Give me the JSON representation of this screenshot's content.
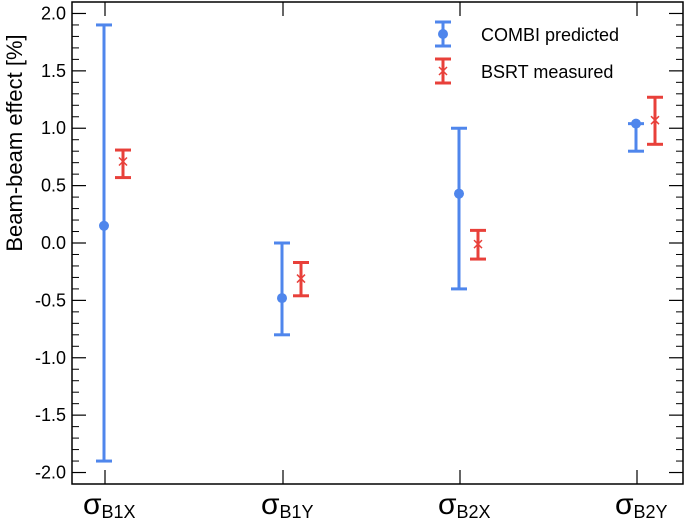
{
  "chart_data": {
    "type": "errorbar",
    "title": "",
    "xlabel": "",
    "ylabel": "Beam-beam effect [%]",
    "ylim": [
      -2.1,
      2.1
    ],
    "yticks": [
      "-2.0",
      "-1.5",
      "-1.0",
      "-0.5",
      "0.0",
      "0.5",
      "1.0",
      "1.5",
      "2.0"
    ],
    "ytick_values": [
      -2.0,
      -1.5,
      -1.0,
      -0.5,
      0.0,
      0.5,
      1.0,
      1.5,
      2.0
    ],
    "categories": [
      {
        "main": "σ",
        "sub": "B1X"
      },
      {
        "main": "σ",
        "sub": "B1Y"
      },
      {
        "main": "σ",
        "sub": "B2X"
      },
      {
        "main": "σ",
        "sub": "B2Y"
      }
    ],
    "legend_position": "top-right",
    "grid": false,
    "series": [
      {
        "name": "COMBI predicted",
        "color": "#4f86ec",
        "marker": "circle",
        "points": [
          {
            "value": 0.15,
            "low": -1.9,
            "high": 1.9
          },
          {
            "value": -0.48,
            "low": -0.8,
            "high": 0.0
          },
          {
            "value": 0.43,
            "low": -0.4,
            "high": 1.0
          },
          {
            "value": 1.04,
            "low": 0.8,
            "high": 1.04
          }
        ]
      },
      {
        "name": "BSRT measured",
        "color": "#e8403a",
        "marker": "x",
        "points": [
          {
            "value": 0.71,
            "low": 0.57,
            "high": 0.81
          },
          {
            "value": -0.31,
            "low": -0.46,
            "high": -0.17
          },
          {
            "value": -0.01,
            "low": -0.14,
            "high": 0.11
          },
          {
            "value": 1.07,
            "low": 0.86,
            "high": 1.27
          }
        ]
      }
    ]
  }
}
